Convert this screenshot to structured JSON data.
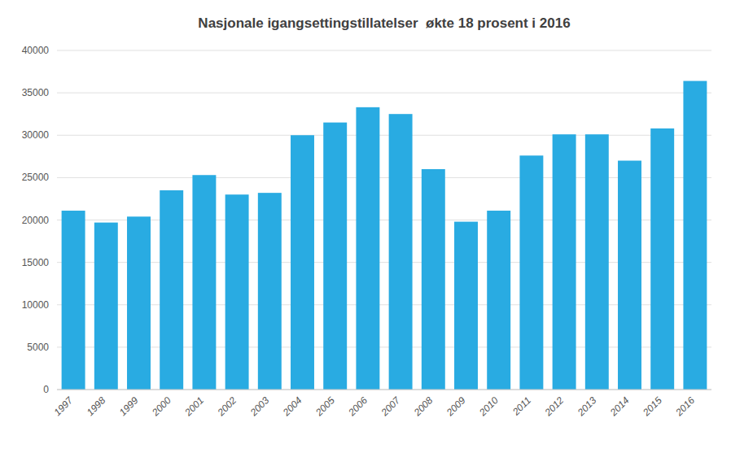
{
  "chart_data": {
    "type": "bar",
    "title": "Nasjonale igangsettingstillatelser  økte 18 prosent i 2016",
    "categories": [
      "1997",
      "1998",
      "1999",
      "2000",
      "2001",
      "2002",
      "2003",
      "2004",
      "2005",
      "2006",
      "2007",
      "2008",
      "2009",
      "2010",
      "2011",
      "2012",
      "2013",
      "2014",
      "2015",
      "2016"
    ],
    "values": [
      21100,
      19700,
      20400,
      23500,
      25300,
      23000,
      23200,
      30000,
      31500,
      33300,
      32500,
      26000,
      19800,
      21100,
      27600,
      30100,
      30100,
      27000,
      30800,
      36400
    ],
    "color": "#29ABE2",
    "ylim": [
      0,
      40000
    ],
    "yticks": [
      0,
      5000,
      10000,
      15000,
      20000,
      25000,
      30000,
      35000,
      40000
    ],
    "grid": true
  }
}
